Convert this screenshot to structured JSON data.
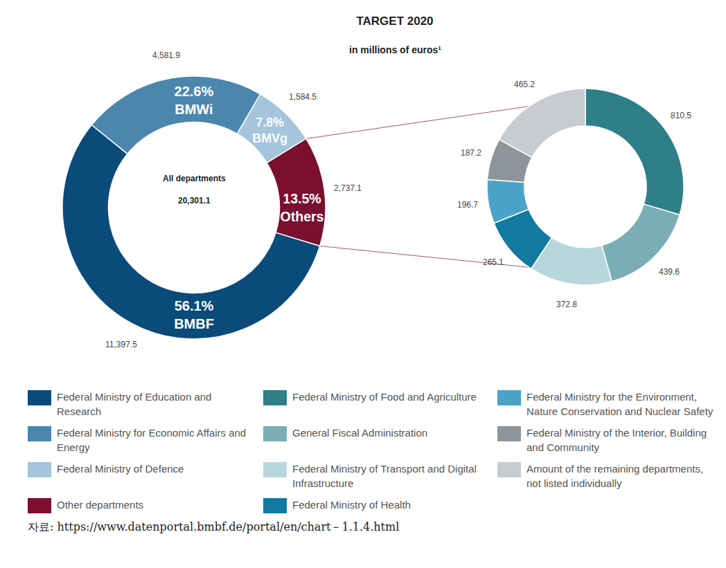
{
  "title": "TARGET 2020",
  "subtitle": "in millions of euros¹",
  "source": "자료: https://www.datenportal.bmbf.de/portal/en/chart－1.1.4.html",
  "chart_data": [
    {
      "type": "pie",
      "center_label": "All departments",
      "total": 20301.1,
      "total_label": "20,301.1",
      "categories": [
        "Federal Ministry of Education and Research",
        "Federal Ministry for Economic Affairs and Energy",
        "Federal Ministry of Defence",
        "Other departments"
      ],
      "short_labels": [
        "BMBF",
        "BMWi",
        "BMVg",
        "Others"
      ],
      "values": [
        56.1,
        22.6,
        7.8,
        13.5
      ],
      "value_labels": [
        "56.1%",
        "22.6%",
        "7.8%",
        "13.5%"
      ],
      "amounts": [
        11397.5,
        4581.9,
        1584.5,
        2737.1
      ],
      "amount_labels": [
        "11,397.5",
        "4,581.9",
        "1,584.5",
        "2,737.1"
      ],
      "colors": [
        "#0a4b7a",
        "#4b87ad",
        "#a4c5dc",
        "#7a0f30"
      ],
      "data_labels": true
    },
    {
      "type": "pie",
      "categories": [
        "Federal Ministry of Food and Agriculture",
        "General Fiscal Administration",
        "Federal Ministry of Transport and Digital Infrastructure",
        "Federal Ministry of Health",
        "Federal Ministry for the Environment, Nature Conservation and Nuclear Safety",
        "Federal Ministry of the Interior, Building and Community",
        "Amount of the remaining departments, not listed individually"
      ],
      "values": [
        810.5,
        439.6,
        372.8,
        265.1,
        196.7,
        187.2,
        465.2
      ],
      "colors": [
        "#2e7f87",
        "#7aaeb5",
        "#b8d7dc",
        "#12799f",
        "#4ba3c8",
        "#8d959b",
        "#c8ccd0"
      ],
      "data_labels": true
    }
  ]
}
